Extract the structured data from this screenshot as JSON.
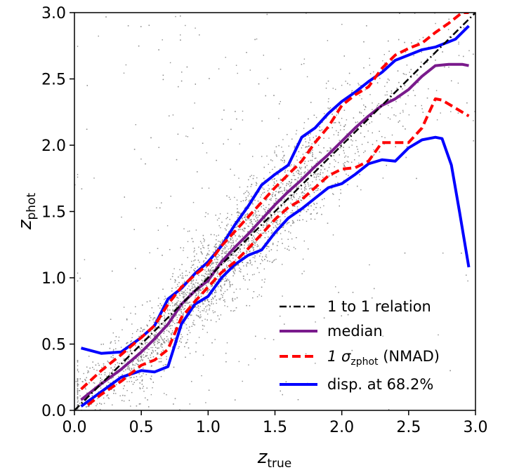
{
  "chart_data": {
    "type": "scatter",
    "xlabel": "z",
    "xlabel_sub": "true",
    "ylabel": "z",
    "ylabel_sub": "phot",
    "xlim": [
      0.0,
      3.0
    ],
    "ylim": [
      0.0,
      3.0
    ],
    "xticks": [
      "0.0",
      "0.5",
      "1.0",
      "1.5",
      "2.0",
      "2.5",
      "3.0"
    ],
    "yticks": [
      "0.0",
      "0.5",
      "1.0",
      "1.5",
      "2.0",
      "2.5",
      "3.0"
    ],
    "grid": false,
    "legend_position": "lower-right",
    "scatter_color": "#8c8c8c",
    "series": [
      {
        "name": "1 to 1 relation",
        "style": "dashdot",
        "color": "#000000",
        "x": [
          0.0,
          3.0
        ],
        "y": [
          0.0,
          3.0
        ]
      },
      {
        "name": "median",
        "style": "solid",
        "color": "#7a1a8c",
        "x": [
          0.05,
          0.2,
          0.35,
          0.5,
          0.6,
          0.7,
          0.8,
          0.9,
          1.0,
          1.1,
          1.2,
          1.3,
          1.4,
          1.5,
          1.6,
          1.7,
          1.8,
          1.9,
          2.0,
          2.1,
          2.2,
          2.3,
          2.4,
          2.5,
          2.6,
          2.7,
          2.8,
          2.9,
          2.95
        ],
        "y": [
          0.08,
          0.2,
          0.31,
          0.44,
          0.54,
          0.65,
          0.8,
          0.9,
          0.98,
          1.12,
          1.23,
          1.33,
          1.44,
          1.55,
          1.65,
          1.74,
          1.84,
          1.93,
          2.03,
          2.13,
          2.22,
          2.3,
          2.35,
          2.42,
          2.52,
          2.6,
          2.61,
          2.61,
          2.6
        ]
      },
      {
        "name": "1 σ",
        "name_sub": "zphot",
        "name_suffix": " (NMAD)",
        "style": "dashed",
        "color": "#ff0000",
        "segments": [
          {
            "x": [
              0.05,
              0.2,
              0.35,
              0.5,
              0.6,
              0.7,
              0.8,
              0.9,
              1.0,
              1.1,
              1.2,
              1.3,
              1.4,
              1.5,
              1.6,
              1.7,
              1.8,
              1.9,
              2.0,
              2.1,
              2.2,
              2.3,
              2.4,
              2.5,
              2.6,
              2.7,
              2.8,
              2.9,
              2.95
            ],
            "y": [
              0.16,
              0.3,
              0.42,
              0.55,
              0.64,
              0.8,
              0.93,
              1.02,
              1.1,
              1.24,
              1.35,
              1.46,
              1.57,
              1.68,
              1.78,
              1.88,
              2.02,
              2.14,
              2.3,
              2.38,
              2.44,
              2.58,
              2.68,
              2.73,
              2.77,
              2.85,
              2.92,
              3.0,
              3.0
            ]
          },
          {
            "x": [
              0.1,
              0.2,
              0.35,
              0.5,
              0.6,
              0.7,
              0.8,
              0.9,
              1.0,
              1.1,
              1.2,
              1.3,
              1.4,
              1.5,
              1.6,
              1.7,
              1.8,
              1.9,
              2.0,
              2.1,
              2.2,
              2.3,
              2.4,
              2.5,
              2.6,
              2.7,
              2.75,
              2.85,
              2.95
            ],
            "y": [
              0.04,
              0.12,
              0.22,
              0.34,
              0.38,
              0.46,
              0.7,
              0.82,
              0.93,
              1.04,
              1.12,
              1.22,
              1.33,
              1.44,
              1.53,
              1.59,
              1.68,
              1.77,
              1.82,
              1.83,
              1.88,
              2.02,
              2.02,
              2.02,
              2.13,
              2.35,
              2.34,
              2.28,
              2.22
            ]
          }
        ]
      },
      {
        "name": "disp. at 68.2%",
        "style": "solid",
        "color": "#0000ff",
        "segments": [
          {
            "x": [
              0.05,
              0.2,
              0.35,
              0.5,
              0.6,
              0.7,
              0.8,
              0.9,
              1.0,
              1.1,
              1.2,
              1.3,
              1.4,
              1.5,
              1.6,
              1.7,
              1.8,
              1.9,
              2.0,
              2.1,
              2.2,
              2.3,
              2.4,
              2.5,
              2.6,
              2.7,
              2.75,
              2.85,
              2.95
            ],
            "y": [
              0.47,
              0.43,
              0.44,
              0.55,
              0.64,
              0.84,
              0.92,
              1.03,
              1.12,
              1.24,
              1.4,
              1.54,
              1.7,
              1.78,
              1.85,
              2.06,
              2.13,
              2.24,
              2.33,
              2.4,
              2.48,
              2.55,
              2.64,
              2.68,
              2.72,
              2.74,
              2.76,
              2.8,
              2.9
            ]
          },
          {
            "x": [
              0.05,
              0.2,
              0.35,
              0.5,
              0.6,
              0.7,
              0.8,
              0.9,
              1.0,
              1.1,
              1.2,
              1.3,
              1.4,
              1.5,
              1.6,
              1.7,
              1.8,
              1.9,
              2.0,
              2.1,
              2.2,
              2.3,
              2.4,
              2.5,
              2.6,
              2.7,
              2.75,
              2.82,
              2.88,
              2.95
            ],
            "y": [
              0.03,
              0.14,
              0.25,
              0.3,
              0.29,
              0.33,
              0.65,
              0.8,
              0.86,
              1.0,
              1.1,
              1.17,
              1.21,
              1.34,
              1.45,
              1.52,
              1.6,
              1.68,
              1.71,
              1.78,
              1.86,
              1.89,
              1.88,
              1.98,
              2.04,
              2.06,
              2.05,
              1.85,
              1.5,
              1.08
            ]
          }
        ]
      }
    ]
  }
}
